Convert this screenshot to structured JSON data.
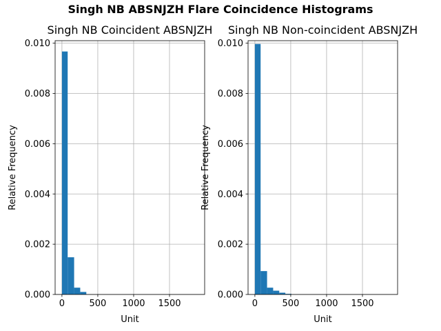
{
  "figure": {
    "suptitle": "Singh NB ABSNJZH Flare Coincidence Histograms"
  },
  "chart_data": [
    {
      "type": "bar",
      "title": "Singh NB Coincident ABSNJZH",
      "xlabel": "Unit",
      "ylabel": "Relative Frequency",
      "xlim": [
        -95,
        1990
      ],
      "ylim": [
        0,
        0.0101
      ],
      "xticks": [
        0,
        500,
        1000,
        1500
      ],
      "xtick_labels": [
        "0",
        "500",
        "1000",
        "1500"
      ],
      "yticks": [
        0,
        0.002,
        0.004,
        0.006,
        0.008,
        0.01
      ],
      "ytick_labels": [
        "0.000",
        "0.002",
        "0.004",
        "0.006",
        "0.008",
        "0.010"
      ],
      "grid": true,
      "color": "#1f77b4",
      "bin_edges": [
        0,
        80,
        170,
        255,
        340,
        425,
        510,
        595,
        680,
        765,
        850,
        935,
        1020,
        1105,
        1190,
        1275,
        1360,
        1445,
        1530,
        1615,
        1700,
        1785,
        1870
      ],
      "values": [
        0.00967,
        0.00148,
        0.00027,
        0.0001,
        0.0,
        0.0,
        0.0,
        0.0,
        0.0,
        0.0,
        0.0,
        0.0,
        0.0,
        0.0,
        0.0,
        0.0,
        0.0,
        0.0,
        0.0,
        0.0,
        0.0,
        0.0
      ]
    },
    {
      "type": "bar",
      "title": "Singh NB Non-coincident ABSNJZH",
      "xlabel": "Unit",
      "ylabel": "Relative Frequency",
      "xlim": [
        -95,
        1990
      ],
      "ylim": [
        0,
        0.0101
      ],
      "xticks": [
        0,
        500,
        1000,
        1500
      ],
      "xtick_labels": [
        "0",
        "500",
        "1000",
        "1500"
      ],
      "yticks": [
        0,
        0.002,
        0.004,
        0.006,
        0.008,
        0.01
      ],
      "ytick_labels": [
        "0.000",
        "0.002",
        "0.004",
        "0.006",
        "0.008",
        "0.010"
      ],
      "grid": true,
      "color": "#1f77b4",
      "bin_edges": [
        0,
        80,
        170,
        255,
        340,
        425,
        510,
        595,
        680,
        765,
        850,
        935,
        1020,
        1105,
        1190,
        1275,
        1360,
        1445,
        1530,
        1615,
        1700,
        1785,
        1870
      ],
      "values": [
        0.00997,
        0.00093,
        0.00027,
        0.00015,
        7e-05,
        2.5e-05,
        0.0,
        0.0,
        0.0,
        0.0,
        0.0,
        0.0,
        0.0,
        0.0,
        0.0,
        0.0,
        0.0,
        0.0,
        0.0,
        0.0,
        0.0,
        0.0
      ]
    }
  ]
}
